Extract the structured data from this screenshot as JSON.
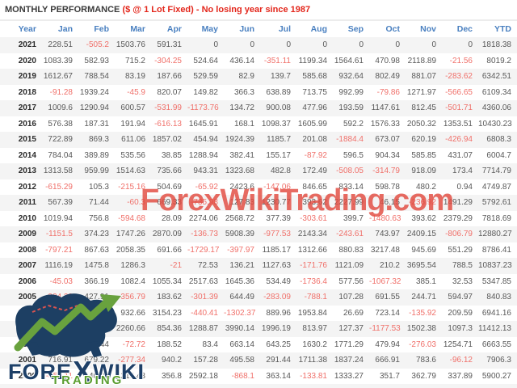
{
  "title": {
    "main": "MONTHLY PERFORMANCE",
    "highlight": "($ @ 1 Lot Fixed) - No losing year since 1987"
  },
  "watermark": "ForexWikiTrading.com",
  "logo": {
    "fore": "FORE",
    "x": "X",
    "wiki": "WIKI",
    "trading": "TRADING"
  },
  "colors": {
    "header_blue": "#4a80c0",
    "negative_red": "#f0706a",
    "title_red": "#e3261b",
    "row_stripe": "#f4f4f4",
    "watermark_red": "#e24a40",
    "logo_navy": "#1e4068",
    "logo_green": "#5b9e31"
  },
  "chart_data": {
    "type": "table",
    "title": "MONTHLY PERFORMANCE ($ @ 1 Lot Fixed) - No losing year since 1987",
    "columns": [
      "Year",
      "Jan",
      "Feb",
      "Mar",
      "Apr",
      "May",
      "Jun",
      "Jul",
      "Aug",
      "Sep",
      "Oct",
      "Nov",
      "Dec",
      "YTD"
    ],
    "rows": [
      {
        "year": "2021",
        "values": [
          "228.51",
          "-505.2",
          "1503.76",
          "591.31",
          "0",
          "0",
          "0",
          "0",
          "0",
          "0",
          "0",
          "0"
        ],
        "ytd": "1818.38"
      },
      {
        "year": "2020",
        "values": [
          "1083.39",
          "582.93",
          "715.2",
          "-304.25",
          "524.64",
          "436.14",
          "-351.11",
          "1199.34",
          "1564.61",
          "470.98",
          "2118.89",
          "-21.56"
        ],
        "ytd": "8019.2"
      },
      {
        "year": "2019",
        "values": [
          "1612.67",
          "788.54",
          "83.19",
          "187.66",
          "529.59",
          "82.9",
          "139.7",
          "585.68",
          "932.64",
          "802.49",
          "881.07",
          "-283.62"
        ],
        "ytd": "6342.51"
      },
      {
        "year": "2018",
        "values": [
          "-91.28",
          "1939.24",
          "-45.9",
          "820.07",
          "149.82",
          "366.3",
          "638.89",
          "713.75",
          "992.99",
          "-79.86",
          "1271.97",
          "-566.65"
        ],
        "ytd": "6109.34"
      },
      {
        "year": "2017",
        "values": [
          "1009.6",
          "1290.94",
          "600.57",
          "-531.99",
          "-1173.76",
          "134.72",
          "900.08",
          "477.96",
          "193.59",
          "1147.61",
          "812.45",
          "-501.71"
        ],
        "ytd": "4360.06"
      },
      {
        "year": "2016",
        "values": [
          "576.38",
          "187.31",
          "191.94",
          "-616.13",
          "1645.91",
          "168.1",
          "1098.37",
          "1605.99",
          "592.2",
          "1576.33",
          "2050.32",
          "1353.51"
        ],
        "ytd": "10430.23"
      },
      {
        "year": "2015",
        "values": [
          "722.89",
          "869.3",
          "611.06",
          "1857.02",
          "454.94",
          "1924.39",
          "1185.7",
          "201.08",
          "-1884.4",
          "673.07",
          "620.19",
          "-426.94"
        ],
        "ytd": "6808.3"
      },
      {
        "year": "2014",
        "values": [
          "784.04",
          "389.89",
          "535.56",
          "38.85",
          "1288.94",
          "382.41",
          "155.17",
          "-87.92",
          "596.5",
          "904.34",
          "585.85",
          "431.07"
        ],
        "ytd": "6004.7"
      },
      {
        "year": "2013",
        "values": [
          "1313.58",
          "959.99",
          "1514.63",
          "735.66",
          "943.31",
          "1323.68",
          "482.8",
          "172.49",
          "-508.05",
          "-314.79",
          "918.09",
          "173.4"
        ],
        "ytd": "7714.79"
      },
      {
        "year": "2012",
        "values": [
          "-615.29",
          "105.3",
          "-215.16",
          "504.69",
          "-65.92",
          "2423.6",
          "-147.06",
          "846.65",
          "833.14",
          "598.78",
          "480.2",
          "0.94"
        ],
        "ytd": "4749.87"
      },
      {
        "year": "2011",
        "values": [
          "567.39",
          "71.44",
          "-60.3",
          "669.33",
          "-735.98",
          "127.83",
          "1230.77",
          "393.62",
          "2227.99",
          "46.15",
          "-236.92",
          "1491.29"
        ],
        "ytd": "5792.61"
      },
      {
        "year": "2010",
        "values": [
          "1019.94",
          "756.8",
          "-594.68",
          "28.09",
          "2274.06",
          "2568.72",
          "377.39",
          "-303.61",
          "399.7",
          "-1480.63",
          "393.62",
          "2379.29"
        ],
        "ytd": "7818.69"
      },
      {
        "year": "2009",
        "values": [
          "-1151.5",
          "374.23",
          "1747.26",
          "2870.09",
          "-136.73",
          "5908.39",
          "-977.53",
          "2143.34",
          "-243.61",
          "743.97",
          "2409.15",
          "-806.79"
        ],
        "ytd": "12880.27"
      },
      {
        "year": "2008",
        "values": [
          "-797.21",
          "867.63",
          "2058.35",
          "691.66",
          "-1729.17",
          "-397.97",
          "1185.17",
          "1312.66",
          "880.83",
          "3217.48",
          "945.69",
          "551.29"
        ],
        "ytd": "8786.41"
      },
      {
        "year": "2007",
        "values": [
          "1116.19",
          "1475.8",
          "1286.3",
          "-21",
          "72.53",
          "136.21",
          "1127.63",
          "-171.76",
          "1121.09",
          "210.2",
          "3695.54",
          "788.5"
        ],
        "ytd": "10837.23"
      },
      {
        "year": "2006",
        "values": [
          "-45.03",
          "366.19",
          "1082.4",
          "1055.34",
          "2517.63",
          "1645.36",
          "534.49",
          "-1736.4",
          "577.56",
          "-1067.32",
          "385.1",
          "32.53"
        ],
        "ytd": "5347.85"
      },
      {
        "year": "2005",
        "values": [
          "-324.33",
          "427.91",
          "-356.79",
          "183.62",
          "-301.39",
          "644.49",
          "-283.09",
          "-788.1",
          "107.28",
          "691.55",
          "244.71",
          "594.97"
        ],
        "ytd": "840.83"
      },
      {
        "year": "2004",
        "values": [
          "2280.42",
          "-1350.67",
          "932.66",
          "3154.23",
          "-440.41",
          "-1302.37",
          "889.96",
          "1953.84",
          "26.69",
          "723.14",
          "-135.92",
          "209.59"
        ],
        "ytd": "6941.16"
      },
      {
        "year": "2003",
        "values": [
          "-1828.49",
          "486.91",
          "2260.66",
          "854.36",
          "1288.87",
          "3990.14",
          "1996.19",
          "813.97",
          "127.37",
          "-1177.53",
          "1502.38",
          "1097.3"
        ],
        "ytd": "11412.13"
      },
      {
        "year": "2002",
        "values": [
          "256.41",
          "41.44",
          "-72.72",
          "188.52",
          "83.4",
          "663.14",
          "643.25",
          "1630.2",
          "1771.29",
          "479.94",
          "-276.03",
          "1254.71"
        ],
        "ytd": "6663.55"
      },
      {
        "year": "2001",
        "values": [
          "716.91",
          "679.22",
          "-277.34",
          "940.2",
          "157.28",
          "495.58",
          "291.44",
          "1711.38",
          "1837.24",
          "666.91",
          "783.6",
          "-96.12"
        ],
        "ytd": "7906.3"
      },
      {
        "year": "2000",
        "values": [
          "-451.11",
          "440.09",
          "1215.43",
          "356.8",
          "2592.18",
          "-868.1",
          "363.14",
          "-133.81",
          "1333.27",
          "351.7",
          "362.79",
          "337.89"
        ],
        "ytd": "5900.27"
      }
    ]
  }
}
